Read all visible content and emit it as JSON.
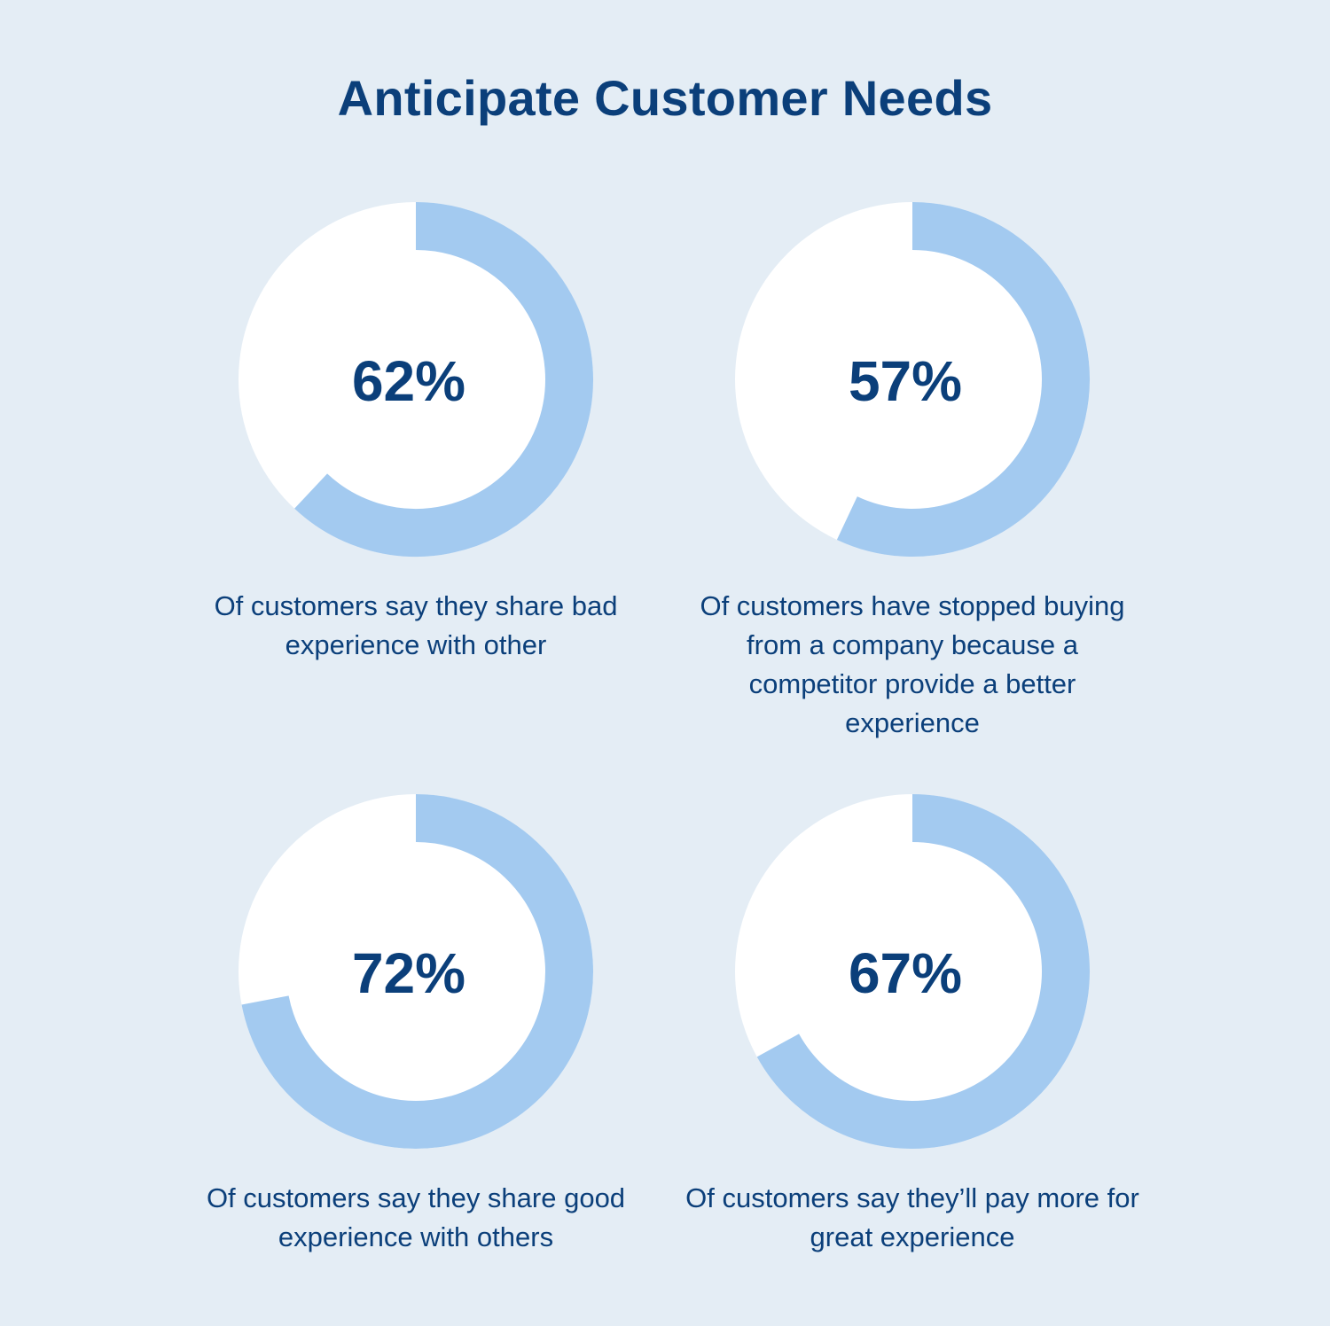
{
  "title": "Anticipate Customer Needs",
  "colors": {
    "background": "#e4edf5",
    "track": "#ffffff",
    "fill": "#a3caf0",
    "text": "#0b3f7a"
  },
  "chart_data": [
    {
      "type": "pie",
      "variant": "donut",
      "value": 62,
      "label": "62%",
      "caption": "Of customers say they share bad experience with other"
    },
    {
      "type": "pie",
      "variant": "donut",
      "value": 57,
      "label": "57%",
      "caption": "Of customers have stopped buying from a company because a competitor provide a better experience"
    },
    {
      "type": "pie",
      "variant": "donut",
      "value": 72,
      "label": "72%",
      "caption": "Of customers say they share good experience with others"
    },
    {
      "type": "pie",
      "variant": "donut",
      "value": 67,
      "label": "67%",
      "caption": "Of customers say they’ll pay more for great experience"
    }
  ]
}
